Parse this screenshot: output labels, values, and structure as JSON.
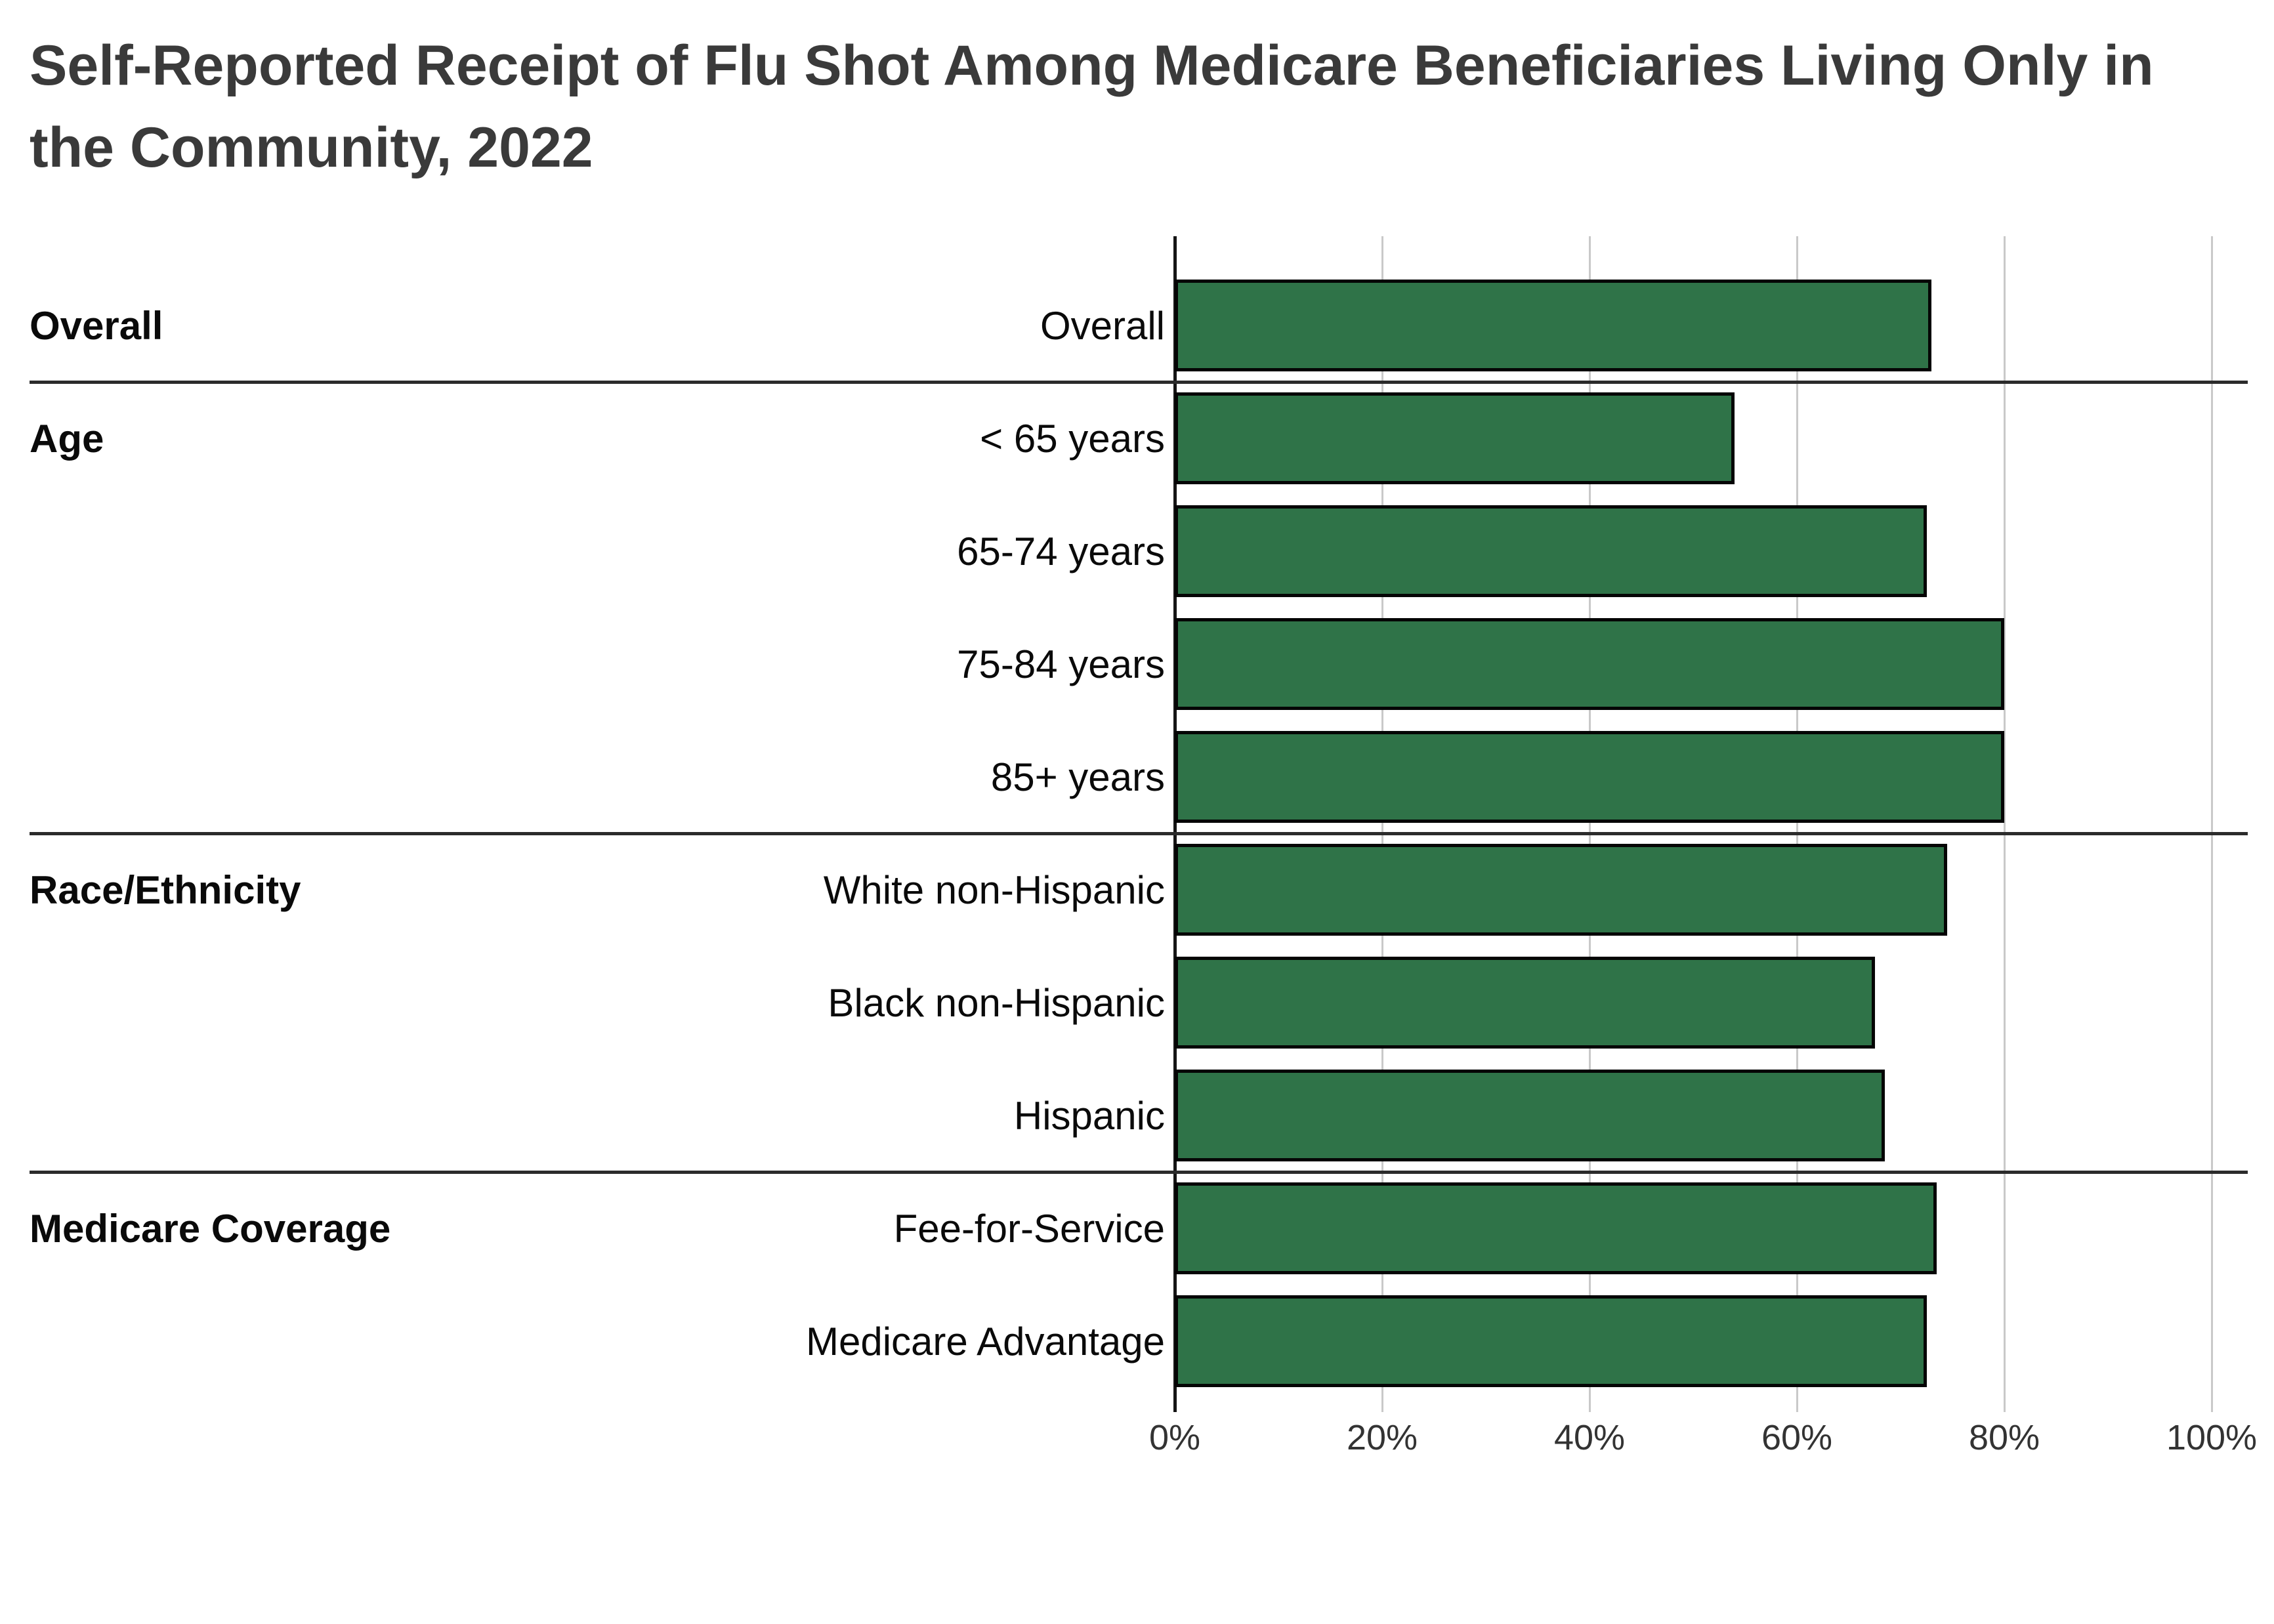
{
  "title": "Self-Reported Receipt of Flu Shot Among Medicare Beneficiaries Living Only in the Community, 2022",
  "colors": {
    "bar_fill": "#2F7348",
    "bar_border": "#050505",
    "gridline": "#c9c9c9",
    "zero_axis": "#151515",
    "separator": "#2b2b2b",
    "title_text": "#3a3a3a",
    "label_text": "#0a0a0a",
    "axis_label_text": "#333333",
    "background": "#ffffff"
  },
  "chart_data": {
    "type": "bar",
    "orientation": "horizontal",
    "title": "Self-Reported Receipt of Flu Shot Among Medicare Beneficiaries Living Only in the Community, 2022",
    "unit": "%",
    "grid": true,
    "legend": false,
    "x_axis": {
      "min": 0,
      "max": 100,
      "tick_values": [
        0,
        20,
        40,
        60,
        80,
        100
      ],
      "tick_labels": [
        "0%",
        "20%",
        "40%",
        "60%",
        "80%",
        "100%"
      ]
    },
    "groups": [
      {
        "label": "Overall",
        "rows": [
          {
            "label": "Overall",
            "value": 73
          }
        ]
      },
      {
        "label": "Age",
        "rows": [
          {
            "label": "< 65 years",
            "value": 54
          },
          {
            "label": "65-74 years",
            "value": 72.5
          },
          {
            "label": "75-84 years",
            "value": 80
          },
          {
            "label": "85+ years",
            "value": 80
          }
        ]
      },
      {
        "label": "Race/Ethnicity",
        "rows": [
          {
            "label": "White non-Hispanic",
            "value": 74.5
          },
          {
            "label": "Black non-Hispanic",
            "value": 67.5
          },
          {
            "label": "Hispanic",
            "value": 68.5
          }
        ]
      },
      {
        "label": "Medicare Coverage",
        "rows": [
          {
            "label": "Fee-for-Service",
            "value": 73.5
          },
          {
            "label": "Medicare Advantage",
            "value": 72.5
          }
        ]
      }
    ]
  }
}
